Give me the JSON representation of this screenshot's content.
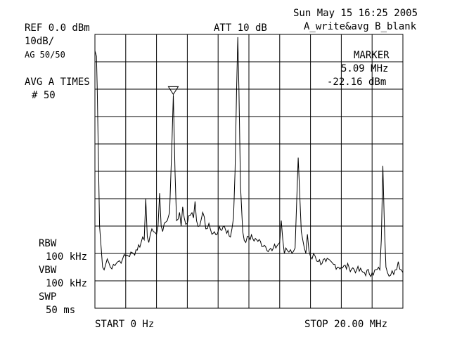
{
  "header": {
    "datetime": "Sun May 15 16:25 2005",
    "trace_mode": "A_write&avg B_blank",
    "ref_level": "REF 0.0 dBm",
    "scale": "10dB/",
    "avg_gate": "AG 50/50",
    "attenuation": "ATT 10 dB",
    "avg_label": "AVG A TIMES",
    "avg_count": "# 50"
  },
  "marker": {
    "title": "MARKER",
    "frequency": "5.09 MHz",
    "amplitude": "-22.16 dBm"
  },
  "settings": {
    "rbw_label": "RBW",
    "rbw_value": "100 kHz",
    "vbw_label": "VBW",
    "vbw_value": "100 kHz",
    "swp_label": "SWP",
    "swp_value": "50 ms"
  },
  "footer": {
    "start": "START 0 Hz",
    "stop": "STOP 20.00 MHz"
  },
  "chart_data": {
    "type": "line",
    "xlim": [
      0,
      20
    ],
    "ylim": [
      -100,
      0
    ],
    "grid": true,
    "marker_point": [
      5.09,
      -22.16
    ],
    "series": [
      {
        "x": [
          0,
          0.1,
          0.15,
          0.3,
          0.5,
          0.6,
          0.8,
          1.0,
          1.2,
          1.5,
          1.8,
          2.0,
          2.5,
          3.0,
          3.1,
          3.2,
          3.3,
          3.4,
          3.5,
          3.6,
          3.7,
          3.8,
          4.0,
          4.1,
          4.2,
          4.3,
          4.4,
          4.5,
          4.7,
          4.85,
          5.0,
          5.09,
          5.2,
          5.3,
          5.5,
          5.6,
          5.7,
          5.8,
          6.0,
          6.2,
          6.4,
          6.5,
          6.6,
          6.8,
          7.0,
          7.2,
          7.4,
          7.6,
          8.0,
          8.4,
          8.8,
          9.0,
          9.1,
          9.2,
          9.28,
          9.35,
          9.45,
          9.6,
          9.8,
          10.0,
          10.5,
          11.0,
          11.5,
          12.0,
          12.1,
          12.2,
          12.3,
          12.4,
          12.5,
          12.8,
          13.0,
          13.2,
          13.4,
          13.6,
          13.7,
          13.8,
          13.9,
          14.1,
          14.2,
          14.3,
          14.5,
          15.0,
          15.5,
          16.0,
          16.5,
          17.0,
          17.5,
          18.0,
          18.5,
          18.6,
          18.7,
          18.8,
          18.9,
          19.0,
          19.2,
          19.5,
          19.7,
          19.9,
          20.0
        ],
        "y": [
          -6,
          -8,
          -20,
          -70,
          -85,
          -86,
          -82,
          -85,
          -84,
          -83,
          -82,
          -81,
          -80,
          -76,
          -74,
          -75,
          -60,
          -74,
          -76,
          -73,
          -71,
          -72,
          -73,
          -70,
          -58,
          -70,
          -72,
          -69,
          -68,
          -65,
          -40,
          -22.16,
          -50,
          -68,
          -65,
          -70,
          -63,
          -67,
          -69,
          -66,
          -67,
          -61,
          -68,
          -70,
          -65,
          -71,
          -69,
          -73,
          -72,
          -70,
          -74,
          -67,
          -50,
          -20,
          -1,
          -20,
          -55,
          -72,
          -76,
          -74,
          -75,
          -77,
          -79,
          -76,
          -68,
          -75,
          -80,
          -78,
          -79,
          -80,
          -78,
          -45,
          -72,
          -78,
          -80,
          -73,
          -79,
          -82,
          -80,
          -81,
          -83,
          -83,
          -84,
          -85,
          -85,
          -86,
          -87,
          -87,
          -86,
          -75,
          -48,
          -70,
          -85,
          -87,
          -88,
          -86,
          -83,
          -86,
          -87
        ]
      }
    ]
  }
}
